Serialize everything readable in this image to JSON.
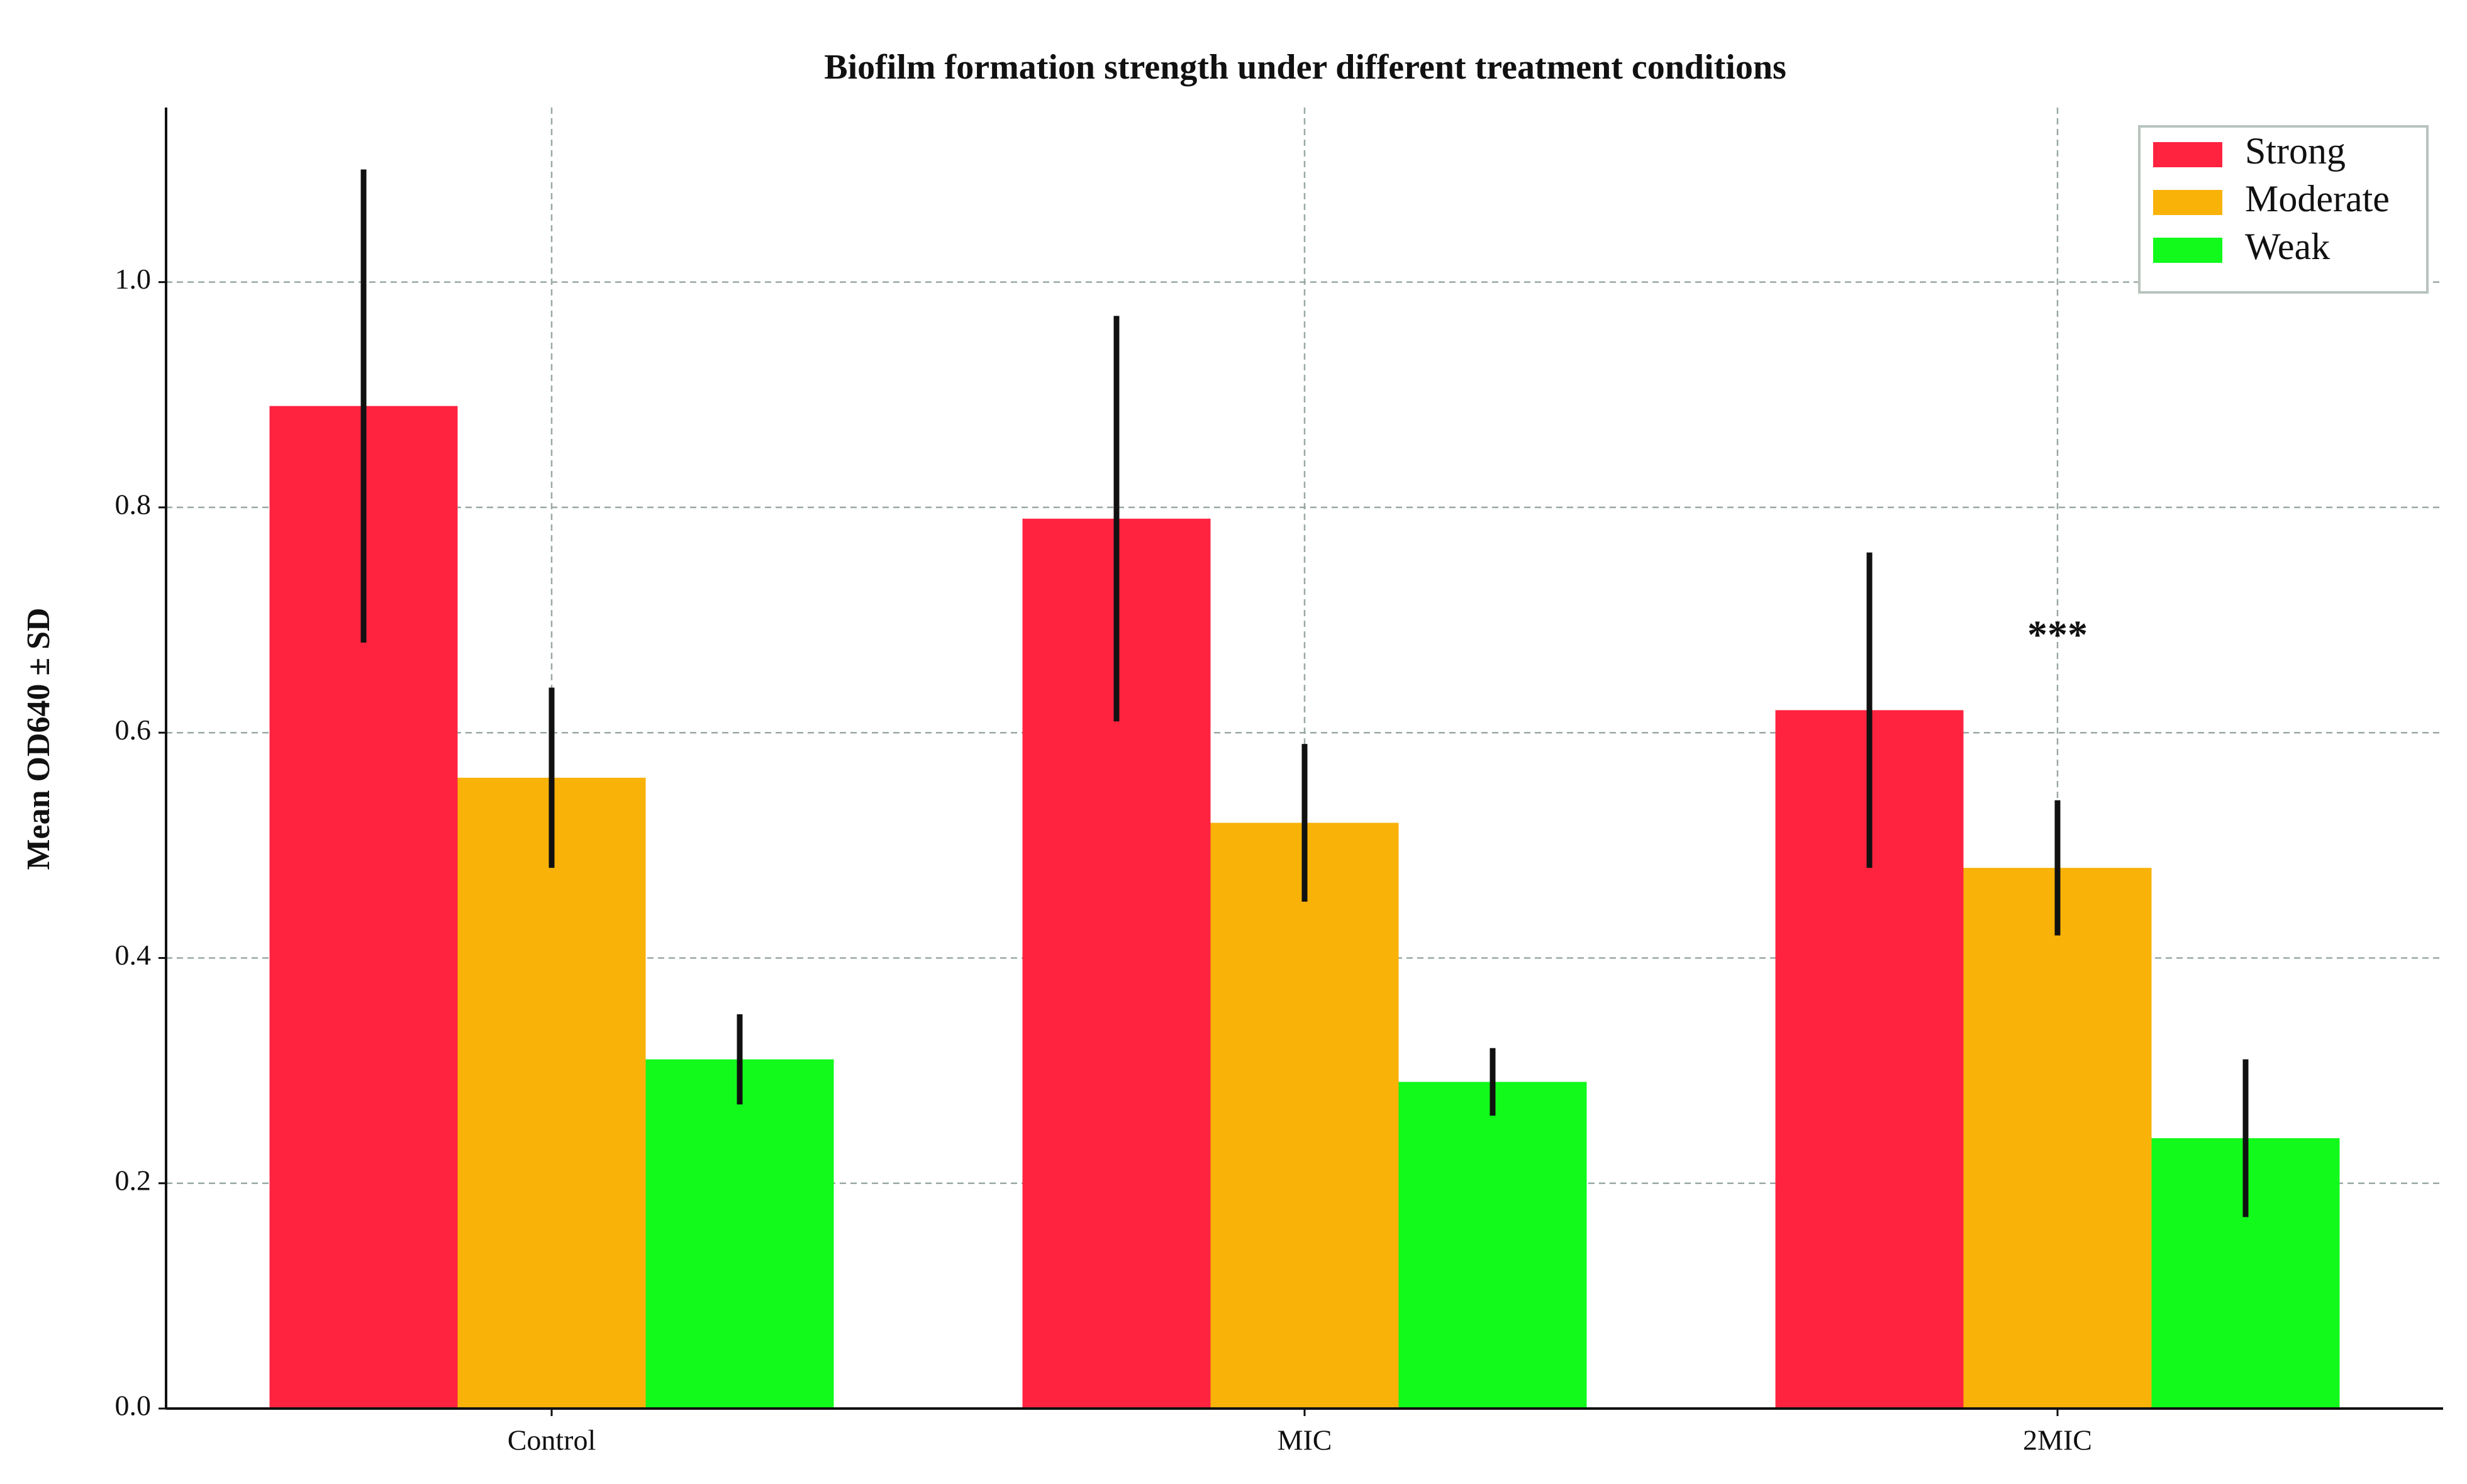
{
  "chart_data": {
    "type": "bar",
    "title": "Biofilm formation strength under different treatment conditions",
    "y_label": "Mean OD640 ± SD",
    "categories": [
      "Control",
      "MIC",
      "2MIC"
    ],
    "series": [
      {
        "name": "Strong",
        "color": "#ff2340",
        "values": [
          0.89,
          0.79,
          0.62
        ],
        "errors": [
          0.21,
          0.18,
          0.14
        ]
      },
      {
        "name": "Moderate",
        "color": "#f9b208",
        "values": [
          0.56,
          0.52,
          0.48
        ],
        "errors": [
          0.08,
          0.07,
          0.06
        ]
      },
      {
        "name": "Weak",
        "color": "#12f91c",
        "values": [
          0.31,
          0.29,
          0.24
        ],
        "errors": [
          0.04,
          0.03,
          0.07
        ]
      }
    ],
    "ylim": [
      0,
      1.155
    ],
    "yticks": [
      {
        "value": 0,
        "label": "0.0"
      },
      0.2,
      0.4,
      0.6,
      0.8,
      {
        "value": 1,
        "label": "1.0"
      }
    ],
    "grid": true,
    "legend": "upper right",
    "annotations": [
      {
        "text": "***",
        "category": 2,
        "series": 1,
        "y": 0.69
      }
    ]
  }
}
